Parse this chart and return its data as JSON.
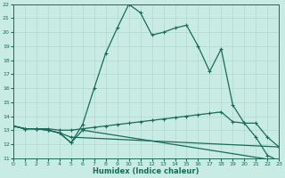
{
  "xlabel": "Humidex (Indice chaleur)",
  "ylabel": "",
  "background_color": "#c8ebe3",
  "line_color": "#1a6b5a",
  "xlim": [
    0,
    23
  ],
  "ylim": [
    11,
    22
  ],
  "xticks": [
    0,
    1,
    2,
    3,
    4,
    5,
    6,
    7,
    8,
    9,
    10,
    11,
    12,
    13,
    14,
    15,
    16,
    17,
    18,
    19,
    20,
    21,
    22,
    23
  ],
  "yticks": [
    11,
    12,
    13,
    14,
    15,
    16,
    17,
    18,
    19,
    20,
    21,
    22
  ],
  "grid_color": "#b0d8d0",
  "line1_x": [
    0,
    1,
    2,
    3,
    4,
    5,
    6,
    7,
    8,
    9,
    10,
    11,
    12,
    13,
    14,
    15,
    16,
    17,
    18,
    19,
    20,
    21,
    22,
    23
  ],
  "line1_y": [
    13.3,
    13.1,
    13.1,
    13.0,
    12.8,
    12.1,
    13.4,
    16.0,
    18.5,
    20.3,
    22.0,
    21.4,
    19.8,
    20.0,
    20.3,
    20.5,
    19.0,
    17.2,
    18.8,
    14.8,
    13.5,
    12.5,
    11.2,
    10.8
  ],
  "line2_x": [
    0,
    1,
    2,
    3,
    4,
    5,
    6,
    7,
    8,
    9,
    10,
    11,
    12,
    13,
    14,
    15,
    16,
    17,
    18,
    19,
    20,
    21,
    22,
    23
  ],
  "line2_y": [
    13.3,
    13.1,
    13.1,
    13.1,
    13.0,
    13.0,
    13.1,
    13.2,
    13.3,
    13.4,
    13.5,
    13.6,
    13.7,
    13.8,
    13.9,
    14.0,
    14.1,
    14.2,
    14.3,
    13.6,
    13.5,
    13.5,
    12.5,
    11.8
  ],
  "line3_x": [
    0,
    1,
    2,
    3,
    4,
    5,
    23
  ],
  "line3_y": [
    13.3,
    13.1,
    13.1,
    13.0,
    12.8,
    12.5,
    11.8
  ],
  "line4_x": [
    0,
    1,
    2,
    3,
    4,
    5,
    6,
    23
  ],
  "line4_y": [
    13.3,
    13.1,
    13.1,
    13.0,
    12.8,
    12.1,
    13.0,
    10.8
  ]
}
